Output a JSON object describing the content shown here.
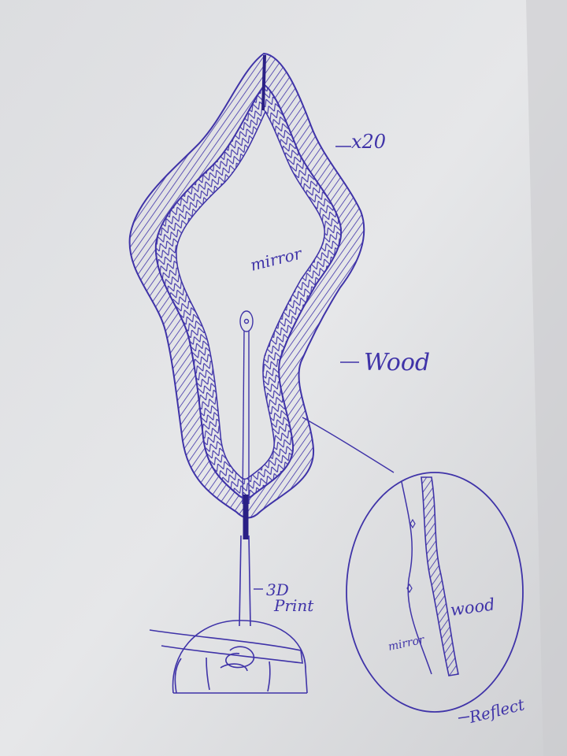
{
  "labels": {
    "scale": "x20",
    "mirror": "mirror",
    "wood": "Wood",
    "print3d_line1": "3D",
    "print3d_line2": "Print",
    "detail_wood": "wood",
    "detail_mirror": "mirror",
    "reflect": "Reflect"
  },
  "colors": {
    "paper": "#e4e5e7",
    "paper_shadow": "#c7c8ca",
    "ink": "#3f33a8",
    "ink_dark": "#2a1f85"
  }
}
